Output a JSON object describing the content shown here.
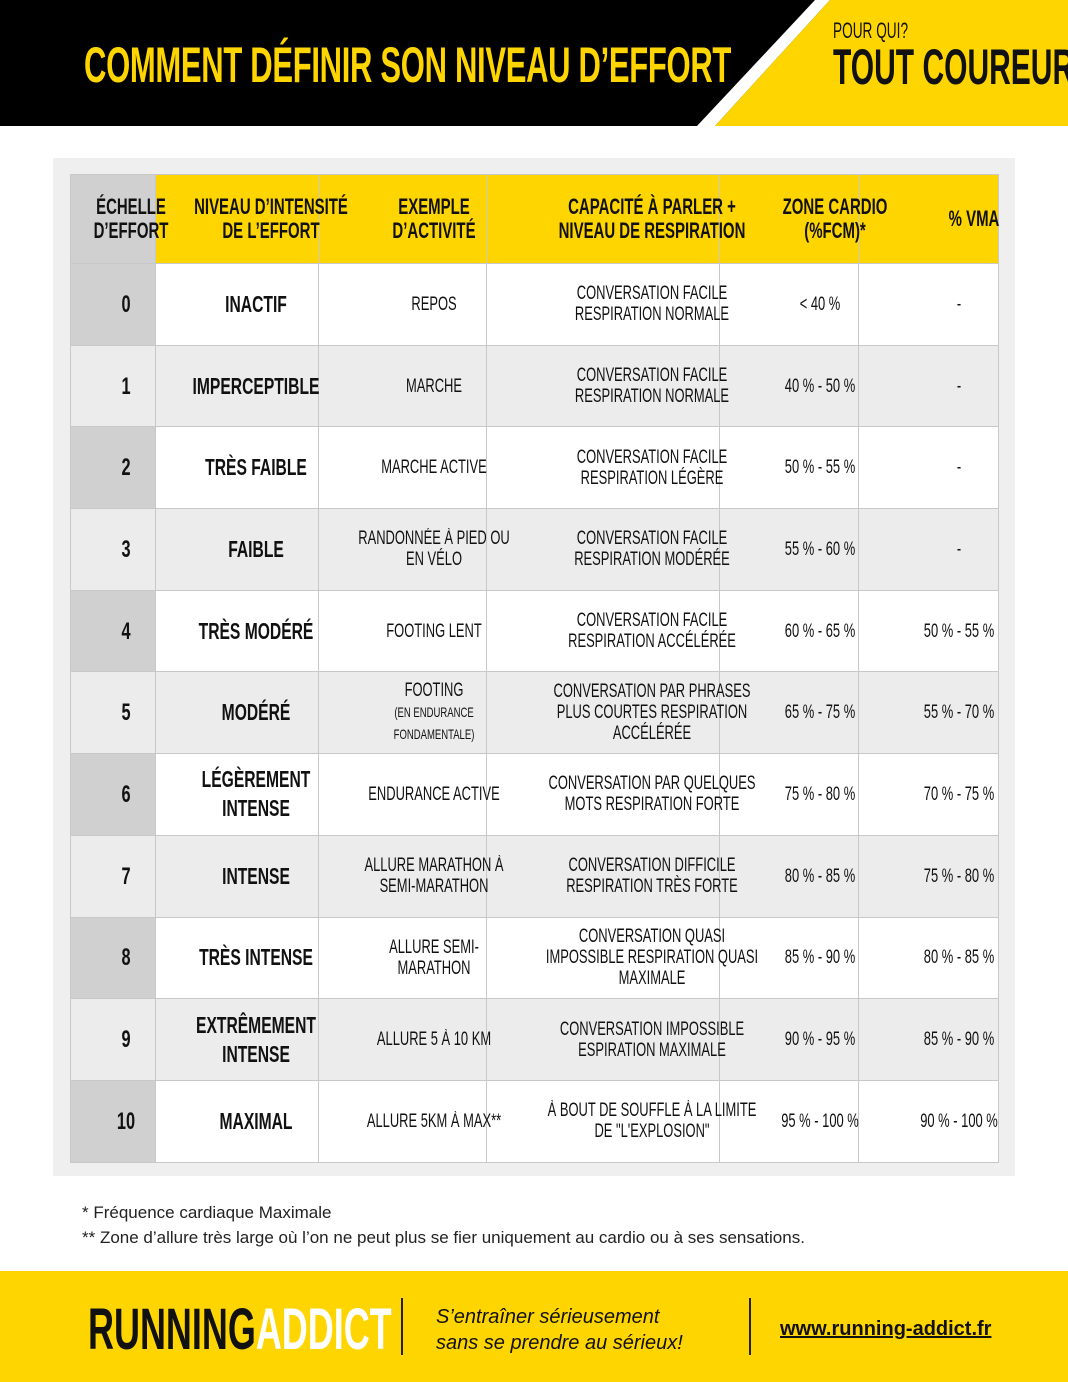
{
  "header": {
    "title": "COMMENT DÉFINIR SON NIVEAU D’EFFORT",
    "subtitle_small": "POUR QUI?",
    "subtitle_big": "TOUT COUREUR"
  },
  "colors": {
    "accent": "#FFD500",
    "dark": "#000000",
    "first_col": "#d0d0d0",
    "alt_row": "#ececec"
  },
  "table": {
    "headers": [
      "ÉCHELLE D’EFFORT",
      "NIVEAU D’INTENSITÉ DE L’EFFORT",
      "EXEMPLE D’ACTIVITÉ",
      "CAPACITÉ À PARLER + NIVEAU DE RESPIRATION",
      "ZONE CARDIO (%FCM)*",
      "% VMA"
    ],
    "rows": [
      {
        "scale": "0",
        "level": "INACTIF",
        "example": "REPOS",
        "example_note": "",
        "talk": "CONVERSATION FACILE RESPIRATION NORMALE",
        "cardio": "< 40 %",
        "vma": "-"
      },
      {
        "scale": "1",
        "level": "IMPERCEPTIBLE",
        "example": "MARCHE",
        "example_note": "",
        "talk": "CONVERSATION FACILE RESPIRATION NORMALE",
        "cardio": "40 % - 50 %",
        "vma": "-"
      },
      {
        "scale": "2",
        "level": "TRÈS FAIBLE",
        "example": "MARCHE ACTIVE",
        "example_note": "",
        "talk": "CONVERSATION FACILE RESPIRATION LÉGÈRE",
        "cardio": "50 % - 55 %",
        "vma": "-"
      },
      {
        "scale": "3",
        "level": "FAIBLE",
        "example": "RANDONNÉE À PIED OU EN VÉLO",
        "example_note": "",
        "talk": "CONVERSATION FACILE RESPIRATION MODÉRÉE",
        "cardio": "55 % - 60 %",
        "vma": "-"
      },
      {
        "scale": "4",
        "level": "TRÈS MODÉRÉ",
        "example": "FOOTING LENT",
        "example_note": "",
        "talk": "CONVERSATION FACILE RESPIRATION ACCÉLÉRÉE",
        "cardio": "60 % - 65 %",
        "vma": "50 % - 55 %"
      },
      {
        "scale": "5",
        "level": "MODÉRÉ",
        "example": "FOOTING",
        "example_note": "(EN ENDURANCE FONDAMENTALE)",
        "talk": "CONVERSATION PAR PHRASES PLUS COURTES RESPIRATION ACCÉLÉRÉE",
        "cardio": "65 % - 75 %",
        "vma": "55 % - 70 %"
      },
      {
        "scale": "6",
        "level": "LÉGÈREMENT INTENSE",
        "example": "ENDURANCE ACTIVE",
        "example_note": "",
        "talk": "CONVERSATION PAR QUELQUES MOTS RESPIRATION FORTE",
        "cardio": "75 % - 80 %",
        "vma": "70 % - 75 %"
      },
      {
        "scale": "7",
        "level": "INTENSE",
        "example": "ALLURE MARATHON À SEMI-MARATHON",
        "example_note": "",
        "talk": "CONVERSATION DIFFICILE RESPIRATION TRÈS FORTE",
        "cardio": "80 % - 85 %",
        "vma": "75 % - 80 %"
      },
      {
        "scale": "8",
        "level": "TRÈS INTENSE",
        "example": "ALLURE SEMI-MARATHON",
        "example_note": "",
        "talk": "CONVERSATION QUASI IMPOSSIBLE RESPIRATION QUASI MAXIMALE",
        "cardio": "85 % - 90 %",
        "vma": "80 % - 85 %"
      },
      {
        "scale": "9",
        "level": "EXTRÊMEMENT INTENSE",
        "example": "ALLURE 5 À 10 KM",
        "example_note": "",
        "talk": "CONVERSATION IMPOSSIBLE ESPIRATION MAXIMALE",
        "cardio": "90 % - 95 %",
        "vma": "85 % - 90 %"
      },
      {
        "scale": "10",
        "level": "MAXIMAL",
        "example": "ALLURE 5KM À MAX**",
        "example_note": "",
        "talk": "À BOUT DE SOUFFLE À LA LIMITE DE \"L'EXPLOSION\"",
        "cardio": "95 % - 100 %",
        "vma": "90 % - 100 %"
      }
    ]
  },
  "notes": [
    "* Fréquence cardiaque Maximale",
    "** Zone d’allure très large où l’on ne peut plus se fier uniquement au cardio ou à ses sensations."
  ],
  "footer": {
    "logo_part1": "RUNNING",
    "logo_part2": "ADDICT",
    "tagline_line1": "S’entraîner sérieusement",
    "tagline_line2": "sans se prendre au sérieux!",
    "url": "www.running-addict.fr"
  }
}
